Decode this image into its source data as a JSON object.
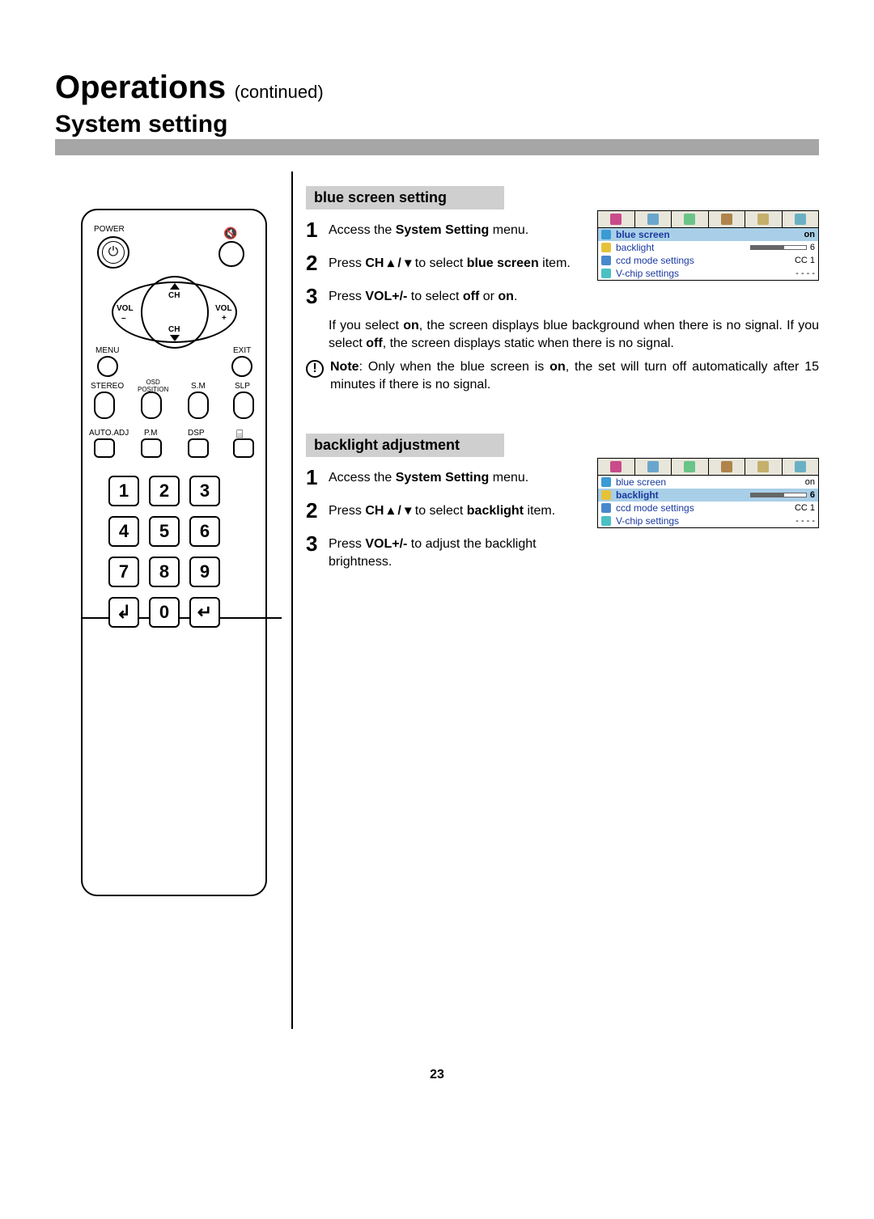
{
  "header": {
    "title": "Operations",
    "continued": "(continued)",
    "subtitle": "System setting"
  },
  "pageNumber": "23",
  "remoteLabels": {
    "power": "POWER",
    "ch": "CH",
    "volL": "VOL",
    "volR": "VOL",
    "minus": "–",
    "plus": "+",
    "menu": "MENU",
    "exit": "EXIT",
    "stereo": "STEREO",
    "osd": "OSD\nPOSITION",
    "sm": "S.M",
    "slp": "SLP",
    "autoadj": "AUTO.ADJ",
    "pm": "P.M",
    "dsp": "DSP",
    "keys": [
      "1",
      "2",
      "3",
      "4",
      "5",
      "6",
      "7",
      "8",
      "9",
      "↲",
      "0",
      "↵"
    ]
  },
  "sections": [
    {
      "title": "blue screen setting",
      "menuShot": {
        "rows": [
          {
            "icon": "#3a9bd4",
            "label": "blue screen",
            "val": "on",
            "sel": true
          },
          {
            "icon": "#e6c23a",
            "label": "backlight",
            "slider": 6,
            "val": "6"
          },
          {
            "icon": "#4a88cc",
            "label": "ccd mode settings",
            "val": "CC 1"
          },
          {
            "icon": "#4ac0c4",
            "label": "V-chip settings",
            "val": "- - - -"
          }
        ]
      },
      "steps": [
        {
          "num": "1",
          "pre": "Access the ",
          "b1": "System Setting",
          "post": " menu."
        },
        {
          "num": "2",
          "pre": "Press ",
          "b1": "CH ▴ / ▾",
          "mid": " to select  ",
          "b2": "blue screen",
          "post": " item."
        },
        {
          "num": "3",
          "pre": "Press ",
          "b1": "VOL+/-",
          "mid": " to select ",
          "b2": "off",
          "mid2": " or ",
          "b3": "on",
          "post": "."
        }
      ],
      "extra": "If you select <b>on</b>, the screen displays blue background when there is no  signal.  If you select <b>off</b>, the screen displays  static when there is no signal.",
      "note": "<b>Note</b>:  Only  when  the  blue  screen  is  <b>on</b>,  the  set  will  turn  off automatically after 15 minutes if there is no signal."
    },
    {
      "title": "backlight adjustment",
      "menuShot": {
        "rows": [
          {
            "icon": "#3a9bd4",
            "label": "blue screen",
            "val": "on"
          },
          {
            "icon": "#e6c23a",
            "label": "backlight",
            "slider": 6,
            "val": "6",
            "sel": true
          },
          {
            "icon": "#4a88cc",
            "label": "ccd mode settings",
            "val": "CC 1"
          },
          {
            "icon": "#4ac0c4",
            "label": "V-chip settings",
            "val": "- - - -"
          }
        ]
      },
      "steps": [
        {
          "num": "1",
          "pre": "Access the ",
          "b1": "System Setting",
          "post": " menu."
        },
        {
          "num": "2",
          "pre": "Press  ",
          "b1": "CH ▴ / ▾",
          "mid": " to  select   ",
          "b2": "backlight",
          "post": " item."
        },
        {
          "num": "3",
          "pre": "Press ",
          "b1": "VOL+/-",
          "post": " to adjust the backlight brightness."
        }
      ]
    }
  ]
}
